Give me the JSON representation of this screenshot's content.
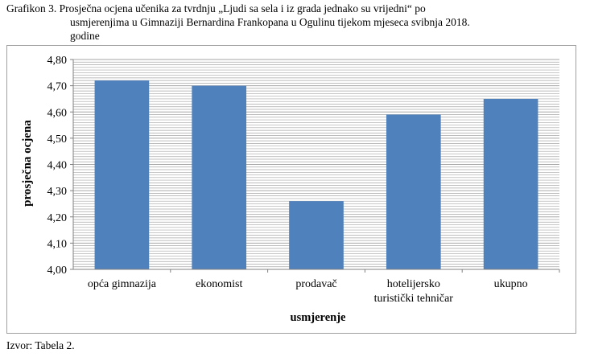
{
  "caption": {
    "line1": "Grafikon 3. Prosječna ocjena učenika za tvrdnju „Ljudi sa sela i iz grada jednako su vrijedni“ po",
    "line2": "usmjerenjima  u Gimnaziji  Bernardina Frankopana u Ogulinu tijekom mjeseca  svibnja 2018.",
    "line3": "godine"
  },
  "source": "Izvor: Tabela  2.",
  "colors": {
    "bar": "#4f81bd",
    "grid": "#a6a6a6",
    "plot_bg": "#ffffff"
  },
  "chart_data": {
    "type": "bar",
    "categories": [
      [
        "opća gimnazija"
      ],
      [
        "ekonomist"
      ],
      [
        "prodavač"
      ],
      [
        "hotelijersko",
        "turistički tehničar"
      ],
      [
        "ukupno"
      ]
    ],
    "values": [
      4.72,
      4.7,
      4.26,
      4.59,
      4.65
    ],
    "xlabel": "usmjerenje",
    "ylabel": "prosječna ocjena",
    "ylim": [
      4.0,
      4.8
    ],
    "yticks": [
      "4,00",
      "4,10",
      "4,20",
      "4,30",
      "4,40",
      "4,50",
      "4,60",
      "4,70",
      "4,80"
    ],
    "grid": true,
    "legend": "none"
  }
}
